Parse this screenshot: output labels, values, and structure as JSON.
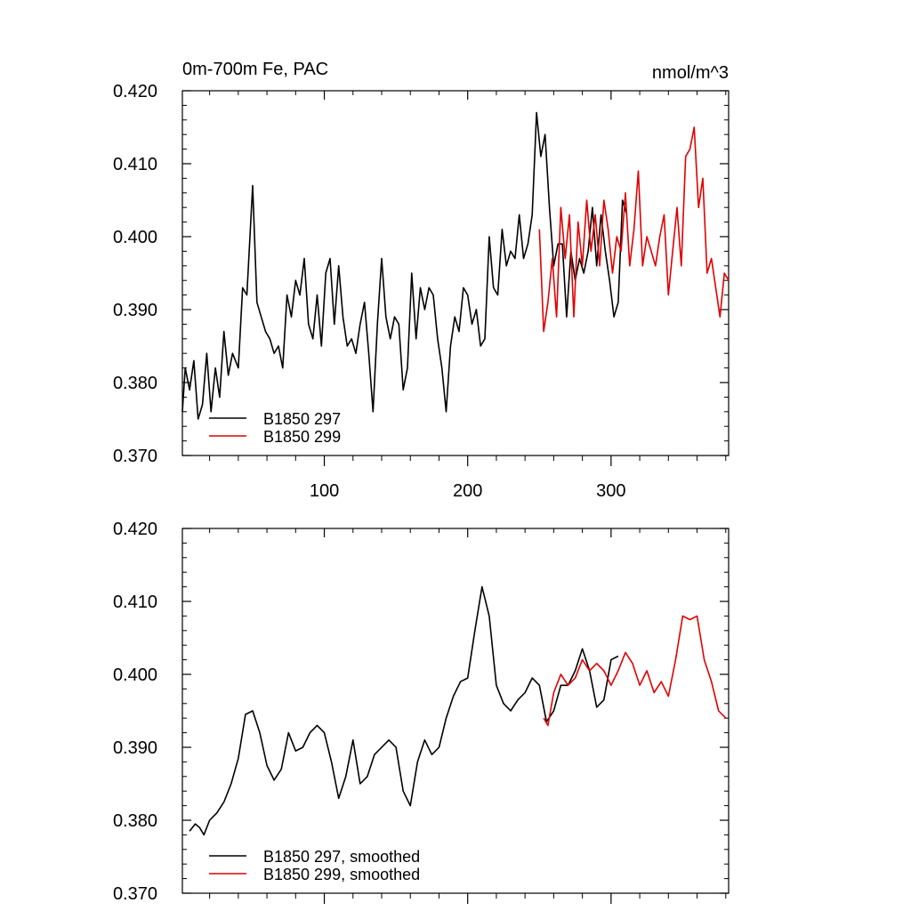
{
  "figure": {
    "title_left": "0m-700m Fe, PAC",
    "title_right": "nmol/m^3"
  },
  "chart_data": [
    {
      "type": "line",
      "panel": "raw",
      "title": "0m-700m Fe, PAC",
      "units": "nmol/m^3",
      "xlim": [
        1,
        382
      ],
      "ylim": [
        0.37,
        0.42
      ],
      "x_ticks": [
        100,
        200,
        300
      ],
      "x_tick_labels": [
        "100",
        "200",
        "300"
      ],
      "y_ticks": [
        0.37,
        0.38,
        0.39,
        0.4,
        0.41,
        0.42
      ],
      "y_tick_labels": [
        "0.370",
        "0.380",
        "0.390",
        "0.400",
        "0.410",
        "0.420"
      ],
      "legend_position": "bottom-left",
      "series": [
        {
          "name": "B1850 297",
          "color": "#000000",
          "x": [
            1,
            3,
            6,
            9,
            12,
            15,
            18,
            21,
            24,
            27,
            30,
            33,
            36,
            40,
            43,
            46,
            50,
            53,
            56,
            59,
            62,
            65,
            68,
            71,
            74,
            77,
            80,
            83,
            86,
            89,
            92,
            95,
            98,
            101,
            104,
            107,
            110,
            113,
            116,
            119,
            122,
            125,
            128,
            131,
            134,
            137,
            140,
            143,
            146,
            149,
            152,
            155,
            158,
            161,
            164,
            167,
            170,
            173,
            176,
            179,
            182,
            185,
            188,
            191,
            194,
            197,
            200,
            203,
            206,
            209,
            212,
            215,
            218,
            221,
            224,
            227,
            230,
            233,
            236,
            239,
            242,
            245,
            248,
            251,
            254,
            257,
            260,
            263,
            266,
            269,
            272,
            275,
            278,
            281,
            284,
            287,
            290,
            293,
            296,
            299,
            302,
            305,
            308,
            311
          ],
          "values": [
            0.376,
            0.382,
            0.379,
            0.383,
            0.375,
            0.377,
            0.384,
            0.376,
            0.382,
            0.378,
            0.387,
            0.381,
            0.384,
            0.382,
            0.393,
            0.392,
            0.407,
            0.391,
            0.389,
            0.387,
            0.386,
            0.384,
            0.385,
            0.382,
            0.392,
            0.389,
            0.394,
            0.392,
            0.397,
            0.388,
            0.386,
            0.392,
            0.385,
            0.395,
            0.397,
            0.388,
            0.396,
            0.389,
            0.385,
            0.386,
            0.384,
            0.388,
            0.391,
            0.384,
            0.376,
            0.388,
            0.397,
            0.389,
            0.386,
            0.389,
            0.388,
            0.379,
            0.382,
            0.395,
            0.386,
            0.393,
            0.39,
            0.393,
            0.392,
            0.386,
            0.382,
            0.376,
            0.385,
            0.389,
            0.387,
            0.393,
            0.392,
            0.388,
            0.39,
            0.385,
            0.386,
            0.4,
            0.393,
            0.392,
            0.401,
            0.396,
            0.398,
            0.397,
            0.403,
            0.397,
            0.399,
            0.403,
            0.417,
            0.411,
            0.414,
            0.404,
            0.396,
            0.399,
            0.399,
            0.389,
            0.398,
            0.394,
            0.397,
            0.395,
            0.398,
            0.404,
            0.396,
            0.403,
            0.398,
            0.394,
            0.389,
            0.391,
            0.405,
            0.403
          ],
          "x_override_note": "black series spans x=1..~310"
        },
        {
          "name": "B1850 299",
          "color": "#e00000",
          "x": [
            250,
            253,
            256,
            259,
            262,
            265,
            268,
            271,
            274,
            277,
            280,
            283,
            286,
            289,
            292,
            295,
            298,
            301,
            304,
            307,
            310,
            313,
            316,
            319,
            322,
            325,
            328,
            331,
            334,
            337,
            340,
            343,
            346,
            349,
            352,
            355,
            358,
            361,
            364,
            367,
            370,
            373,
            376,
            379,
            382
          ],
          "values": [
            0.401,
            0.387,
            0.391,
            0.397,
            0.389,
            0.404,
            0.397,
            0.403,
            0.389,
            0.402,
            0.396,
            0.405,
            0.398,
            0.403,
            0.396,
            0.405,
            0.401,
            0.395,
            0.4,
            0.398,
            0.406,
            0.396,
            0.401,
            0.409,
            0.396,
            0.4,
            0.398,
            0.396,
            0.4,
            0.403,
            0.392,
            0.398,
            0.404,
            0.396,
            0.411,
            0.412,
            0.415,
            0.404,
            0.408,
            0.395,
            0.397,
            0.393,
            0.389,
            0.395,
            0.394
          ]
        }
      ]
    },
    {
      "type": "line",
      "panel": "smoothed",
      "xlim": [
        1,
        382
      ],
      "ylim": [
        0.37,
        0.42
      ],
      "x_ticks": [
        100,
        200,
        300
      ],
      "y_ticks": [
        0.37,
        0.38,
        0.39,
        0.4,
        0.41,
        0.42
      ],
      "y_tick_labels": [
        "0.370",
        "0.380",
        "0.390",
        "0.400",
        "0.410",
        "0.420"
      ],
      "legend_position": "bottom-left",
      "series": [
        {
          "name": "B1850 297, smoothed",
          "color": "#000000",
          "x": [
            6,
            10,
            13,
            16,
            20,
            25,
            30,
            35,
            40,
            45,
            50,
            55,
            60,
            65,
            70,
            75,
            80,
            85,
            90,
            95,
            100,
            105,
            110,
            115,
            120,
            125,
            130,
            135,
            140,
            145,
            150,
            155,
            160,
            165,
            170,
            175,
            180,
            185,
            190,
            195,
            200,
            205,
            210,
            215,
            220,
            225,
            230,
            235,
            240,
            245,
            250,
            255,
            260,
            265,
            270,
            275,
            280,
            285,
            290,
            295,
            300,
            305
          ],
          "values": [
            0.3785,
            0.3795,
            0.379,
            0.378,
            0.38,
            0.381,
            0.3825,
            0.385,
            0.3885,
            0.3945,
            0.395,
            0.392,
            0.3875,
            0.3855,
            0.387,
            0.392,
            0.3895,
            0.39,
            0.392,
            0.393,
            0.392,
            0.388,
            0.383,
            0.386,
            0.391,
            0.385,
            0.386,
            0.389,
            0.39,
            0.391,
            0.39,
            0.384,
            0.382,
            0.388,
            0.391,
            0.389,
            0.39,
            0.394,
            0.397,
            0.399,
            0.3995,
            0.406,
            0.412,
            0.408,
            0.3985,
            0.396,
            0.395,
            0.3965,
            0.3975,
            0.3995,
            0.3985,
            0.3935,
            0.395,
            0.3985,
            0.3985,
            0.4005,
            0.4035,
            0.4005,
            0.3955,
            0.3965,
            0.402,
            0.4025
          ]
        },
        {
          "name": "B1850 299, smoothed",
          "color": "#e00000",
          "x": [
            253,
            256,
            260,
            265,
            270,
            275,
            280,
            285,
            290,
            295,
            300,
            305,
            310,
            315,
            320,
            325,
            330,
            335,
            340,
            345,
            350,
            355,
            360,
            365,
            370,
            375,
            380
          ],
          "values": [
            0.394,
            0.393,
            0.3975,
            0.4,
            0.3985,
            0.3995,
            0.402,
            0.4005,
            0.4015,
            0.4005,
            0.3985,
            0.4005,
            0.403,
            0.4015,
            0.3985,
            0.4005,
            0.3975,
            0.399,
            0.397,
            0.402,
            0.408,
            0.4075,
            0.408,
            0.402,
            0.399,
            0.395,
            0.394
          ]
        }
      ]
    }
  ]
}
